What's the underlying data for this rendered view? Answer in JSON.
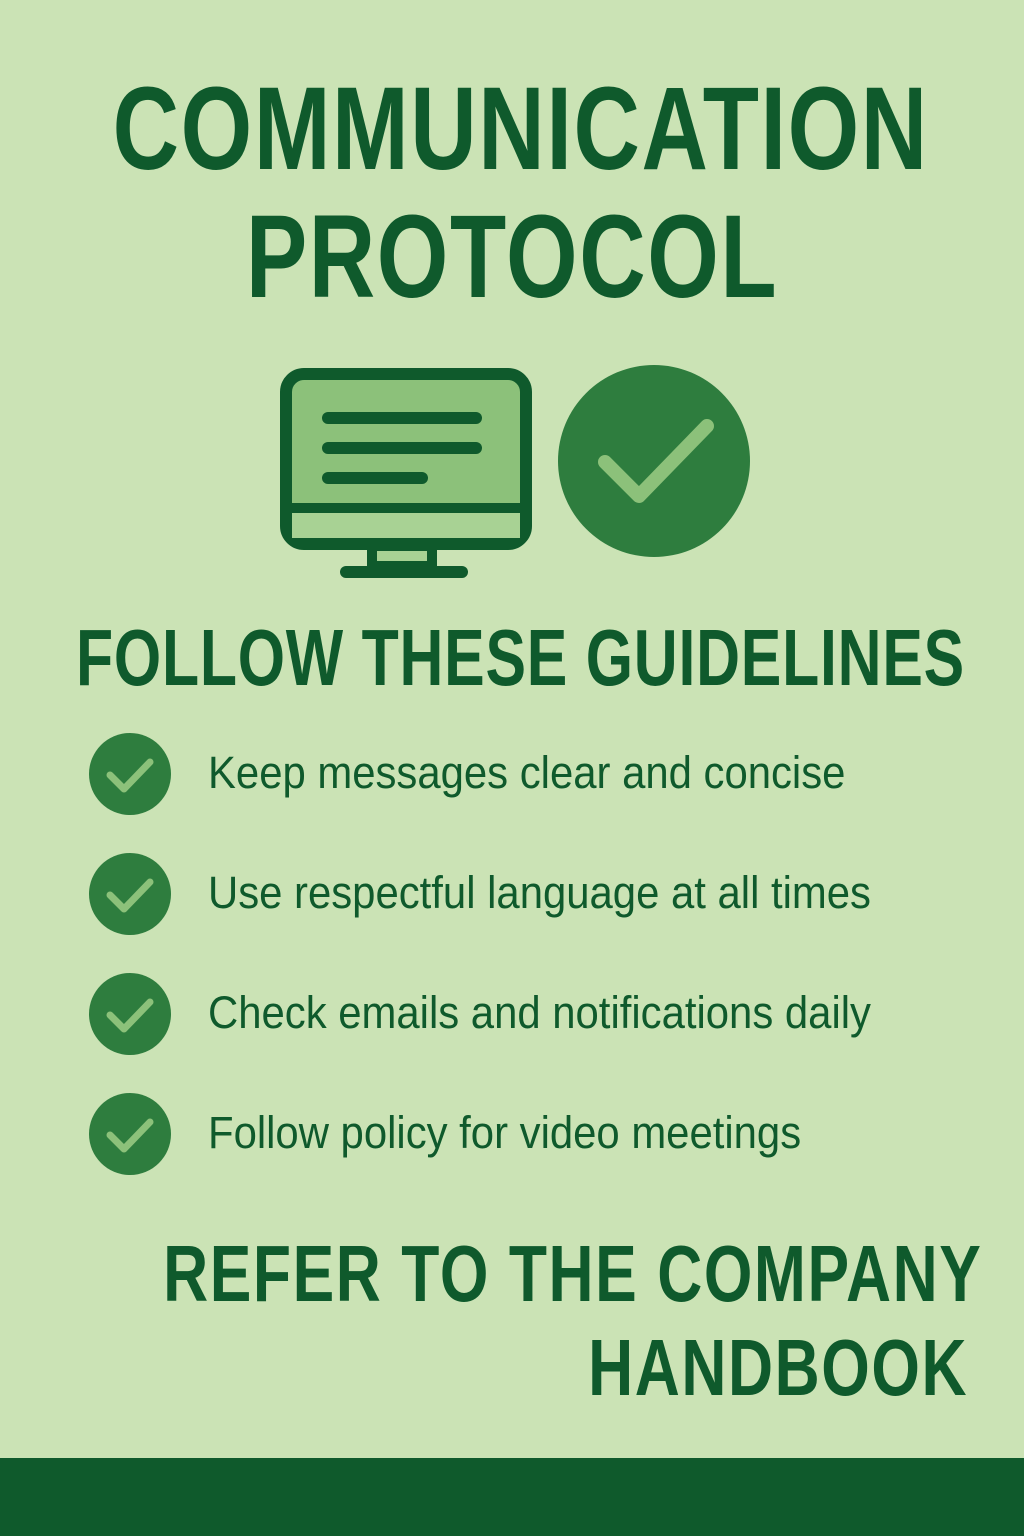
{
  "title": {
    "line1": "COMMUNICATION",
    "line2": "PROTOCOL"
  },
  "icons": {
    "monitor": "monitor-icon",
    "check": "check-circle-icon"
  },
  "subtitle": "FOLLOW THESE GUIDELINES",
  "guidelines": [
    "Keep messages clear and concise",
    "Use respectful language at all times",
    "Check emails and notifications daily",
    "Follow policy for video meetings"
  ],
  "footer": {
    "line1": "REFER TO THE COMPANY",
    "line2": "HANDBOOK"
  },
  "colors": {
    "background": "#cbe3b5",
    "primary_dark": "#0f5a2c",
    "primary_mid": "#2e7d3e",
    "accent_light": "#8cc17a"
  }
}
